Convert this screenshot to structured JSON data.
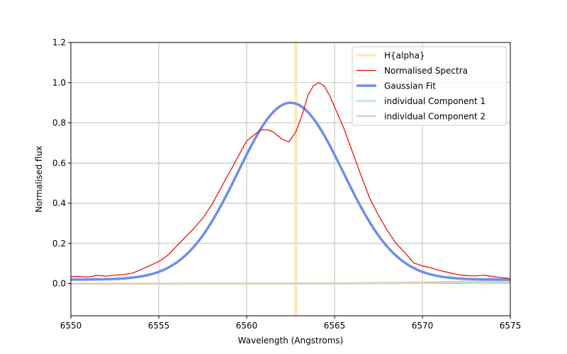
{
  "chart_data": {
    "type": "line",
    "title": "",
    "xlabel": "Wavelength (Angstroms)",
    "ylabel": "Normalised flux",
    "xlim": [
      6550,
      6575
    ],
    "ylim": [
      -0.16,
      1.2
    ],
    "xticks": [
      6550,
      6555,
      6560,
      6565,
      6570,
      6575
    ],
    "xtick_labels": [
      "6550",
      "6555",
      "6560",
      "6565",
      "6570",
      "6575"
    ],
    "yticks": [
      0.0,
      0.2,
      0.4,
      0.6,
      0.8,
      1.0,
      1.2
    ],
    "ytick_labels": [
      "0.0",
      "0.2",
      "0.4",
      "0.6",
      "0.8",
      "1.0",
      "1.2"
    ],
    "grid": true,
    "legend_position": "top-right",
    "vline": {
      "name": "H{alpha}",
      "x": 6562.8,
      "color": "#ffe4b5"
    },
    "series": [
      {
        "name": "Normalised Spectra",
        "color": "#ee0000",
        "points": [
          [
            6550.0,
            0.035
          ],
          [
            6550.5,
            0.035
          ],
          [
            6551.0,
            0.033
          ],
          [
            6551.5,
            0.041
          ],
          [
            6552.0,
            0.037
          ],
          [
            6552.5,
            0.042
          ],
          [
            6553.0,
            0.045
          ],
          [
            6553.5,
            0.052
          ],
          [
            6554.0,
            0.07
          ],
          [
            6554.5,
            0.09
          ],
          [
            6555.0,
            0.11
          ],
          [
            6555.5,
            0.14
          ],
          [
            6556.0,
            0.185
          ],
          [
            6556.5,
            0.23
          ],
          [
            6557.0,
            0.275
          ],
          [
            6557.5,
            0.325
          ],
          [
            6558.0,
            0.39
          ],
          [
            6558.5,
            0.47
          ],
          [
            6559.0,
            0.55
          ],
          [
            6559.5,
            0.63
          ],
          [
            6560.0,
            0.71
          ],
          [
            6560.5,
            0.745
          ],
          [
            6560.8,
            0.765
          ],
          [
            6561.2,
            0.765
          ],
          [
            6561.5,
            0.755
          ],
          [
            6562.0,
            0.72
          ],
          [
            6562.4,
            0.705
          ],
          [
            6562.8,
            0.755
          ],
          [
            6563.2,
            0.85
          ],
          [
            6563.5,
            0.94
          ],
          [
            6563.8,
            0.985
          ],
          [
            6564.1,
            1.0
          ],
          [
            6564.4,
            0.985
          ],
          [
            6564.7,
            0.94
          ],
          [
            6565.0,
            0.88
          ],
          [
            6565.5,
            0.78
          ],
          [
            6566.0,
            0.66
          ],
          [
            6566.5,
            0.54
          ],
          [
            6567.0,
            0.425
          ],
          [
            6567.5,
            0.34
          ],
          [
            6568.0,
            0.265
          ],
          [
            6568.5,
            0.2
          ],
          [
            6569.0,
            0.155
          ],
          [
            6569.5,
            0.103
          ],
          [
            6570.0,
            0.088
          ],
          [
            6570.5,
            0.078
          ],
          [
            6571.0,
            0.065
          ],
          [
            6571.5,
            0.055
          ],
          [
            6572.0,
            0.045
          ],
          [
            6572.5,
            0.04
          ],
          [
            6573.0,
            0.038
          ],
          [
            6573.5,
            0.042
          ],
          [
            6574.0,
            0.035
          ],
          [
            6574.5,
            0.03
          ],
          [
            6575.0,
            0.025
          ]
        ]
      },
      {
        "name": "Gaussian Fit",
        "color": "#6f8ee6",
        "model": "gaussian",
        "amplitude": 0.88,
        "center": 6562.5,
        "sigma": 3.0,
        "offset": 0.02
      },
      {
        "name": "individual Component 1",
        "color": "#b7e9dd",
        "points": [
          [
            6550,
            0.0
          ],
          [
            6565,
            0.0
          ],
          [
            6570,
            0.003
          ],
          [
            6572,
            0.007
          ],
          [
            6575,
            0.005
          ]
        ]
      },
      {
        "name": "individual Component 2",
        "color": "#e2cbb4",
        "points": [
          [
            6550,
            0.0
          ],
          [
            6565,
            0.001
          ],
          [
            6570,
            0.006
          ],
          [
            6572,
            0.01
          ],
          [
            6575,
            0.012
          ]
        ]
      }
    ]
  }
}
